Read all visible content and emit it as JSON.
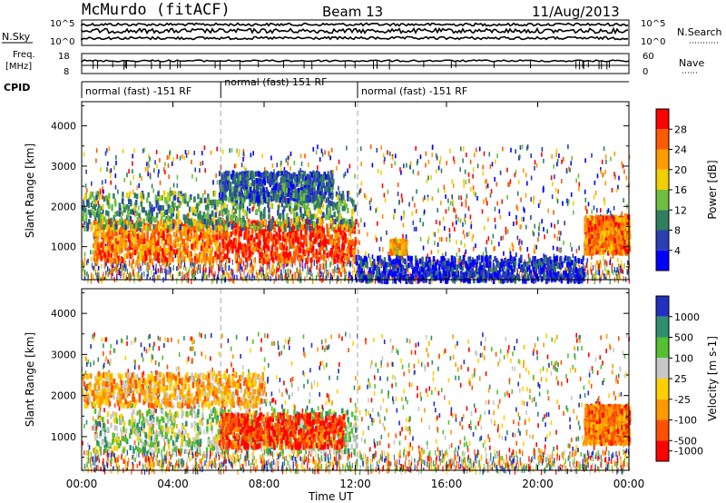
{
  "header": {
    "station": "McMurdo (fitACF)",
    "beam": "Beam 13",
    "date": "11/Aug/2013"
  },
  "strip": {
    "nsky_label": "N.Sky",
    "nsky_ticks": [
      "10^5",
      "10^0"
    ],
    "nsearch_label": "N.Search",
    "nsearch_ticks": [
      "10^5",
      "10^0"
    ],
    "freq_label_1": "Freq.",
    "freq_label_2": "[MHz]",
    "freq_ticks": [
      "18",
      "8"
    ],
    "nave_label": "Nave",
    "nave_ticks": [
      "60",
      "0"
    ],
    "cpid_label": "CPID",
    "cpid_segments": [
      {
        "label": "normal (fast) -151 RF",
        "start": 0,
        "end": 6.1
      },
      {
        "label": "normal (fast) 151 RF",
        "start": 6.1,
        "end": 12.1
      },
      {
        "label": "normal (fast) -151 RF",
        "start": 12.1,
        "end": 24
      }
    ]
  },
  "chart_data": [
    {
      "type": "heatmap",
      "title": "Power",
      "ylabel": "Slant Range [km]",
      "xlabel": "Time UT",
      "xlim": [
        0,
        24
      ],
      "ylim": [
        180,
        4600
      ],
      "yticks": [
        1000,
        2000,
        3000,
        4000
      ],
      "colorbar": {
        "label": "Power [dB]",
        "ticks": [
          "4",
          "8",
          "12",
          "16",
          "20",
          "24",
          "28"
        ],
        "colors": [
          "#0000ff",
          "#2b3fb3",
          "#2f7f5f",
          "#6fbf3f",
          "#f0d000",
          "#ff9a00",
          "#ff5a00",
          "#ff0000"
        ]
      },
      "regions": [
        {
          "x": [
            0.5,
            6.0
          ],
          "y": [
            700,
            1700
          ],
          "level": 6
        },
        {
          "x": [
            6.0,
            12.0
          ],
          "y": [
            700,
            1700
          ],
          "level": 7
        },
        {
          "x": [
            13.5,
            14.2
          ],
          "y": [
            900,
            1200
          ],
          "level": 5
        },
        {
          "x": [
            22.0,
            24.0
          ],
          "y": [
            900,
            1800
          ],
          "level": 6
        },
        {
          "x": [
            0.0,
            12.0
          ],
          "y": [
            1500,
            2400
          ],
          "level": 3
        },
        {
          "x": [
            6.0,
            11.0
          ],
          "y": [
            2200,
            2900
          ],
          "level": 2
        },
        {
          "x": [
            12.0,
            22.0
          ],
          "y": [
            200,
            800
          ],
          "level": 1
        }
      ]
    },
    {
      "type": "heatmap",
      "title": "Velocity",
      "ylabel": "Slant Range [km]",
      "xlabel": "Time UT",
      "xlim": [
        0,
        24
      ],
      "ylim": [
        180,
        4600
      ],
      "yticks": [
        1000,
        2000,
        3000,
        4000
      ],
      "colorbar": {
        "label": "Velocity [m s-1]",
        "ticks": [
          "1000",
          "500",
          "100",
          "25",
          "-25",
          "-100",
          "-500",
          "-1000"
        ],
        "colors": [
          "#2030c0",
          "#2f8f6f",
          "#55c030",
          "#c8c8c8",
          "#ffd000",
          "#ff9a00",
          "#ff5000",
          "#ff0000"
        ]
      },
      "regions": [
        {
          "x": [
            0.5,
            12.0
          ],
          "y": [
            700,
            1700
          ],
          "level": 5
        },
        {
          "x": [
            6.0,
            11.5
          ],
          "y": [
            800,
            1600
          ],
          "level": 1
        },
        {
          "x": [
            22.0,
            24.0
          ],
          "y": [
            900,
            1800
          ],
          "level": 2
        },
        {
          "x": [
            0.0,
            8.0
          ],
          "y": [
            1800,
            2600
          ],
          "level": 3
        }
      ]
    }
  ],
  "x_axis": {
    "ticks": [
      "00:00",
      "04:00",
      "08:00",
      "12:00",
      "16:00",
      "20:00",
      "00:00"
    ],
    "label": "Time UT"
  }
}
